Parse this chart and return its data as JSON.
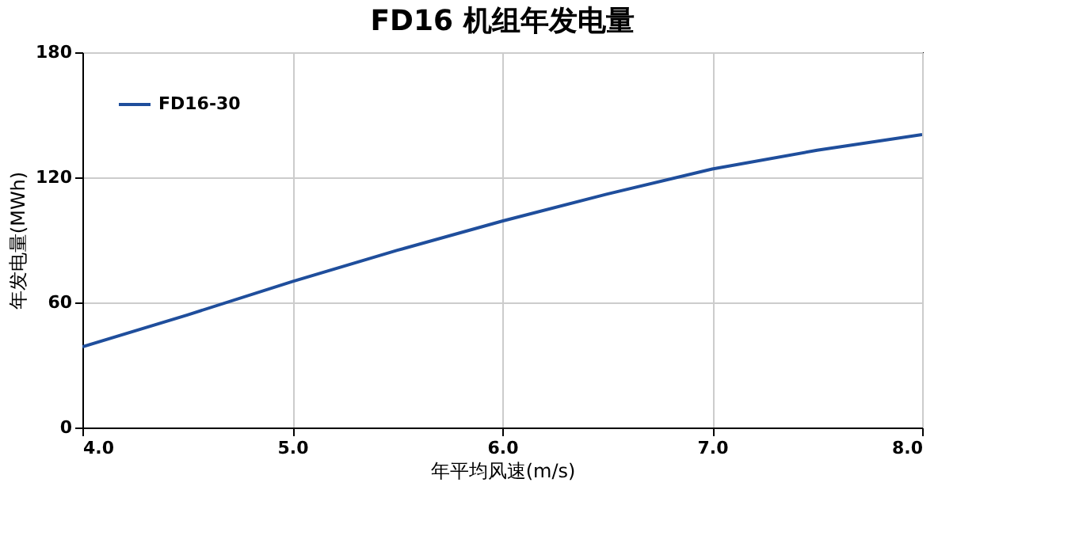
{
  "chart_data": {
    "type": "line",
    "title": "FD16  机组年发电量",
    "xlabel": "年平均风速(m/s)",
    "ylabel": "年发电量(MWh)",
    "x": [
      4.0,
      4.5,
      5.0,
      5.5,
      6.0,
      6.5,
      7.0,
      7.5,
      8.0
    ],
    "series": [
      {
        "name": "FD16-30",
        "color": "#1f4e9c",
        "values": [
          38.7,
          54,
          70,
          85,
          99,
          112,
          124,
          133,
          140.5
        ]
      }
    ],
    "xlim": [
      4.0,
      8.0
    ],
    "xticks": [
      {
        "value": 4,
        "label": "4.0"
      },
      {
        "value": 5,
        "label": "5.0"
      },
      {
        "value": 6,
        "label": "6.0"
      },
      {
        "value": 7,
        "label": "7.0"
      },
      {
        "value": 8,
        "label": "8.0"
      }
    ],
    "ylim": [
      0,
      180
    ],
    "yticks": [
      0,
      60,
      120,
      180
    ],
    "grid": true,
    "legend": "top left"
  }
}
